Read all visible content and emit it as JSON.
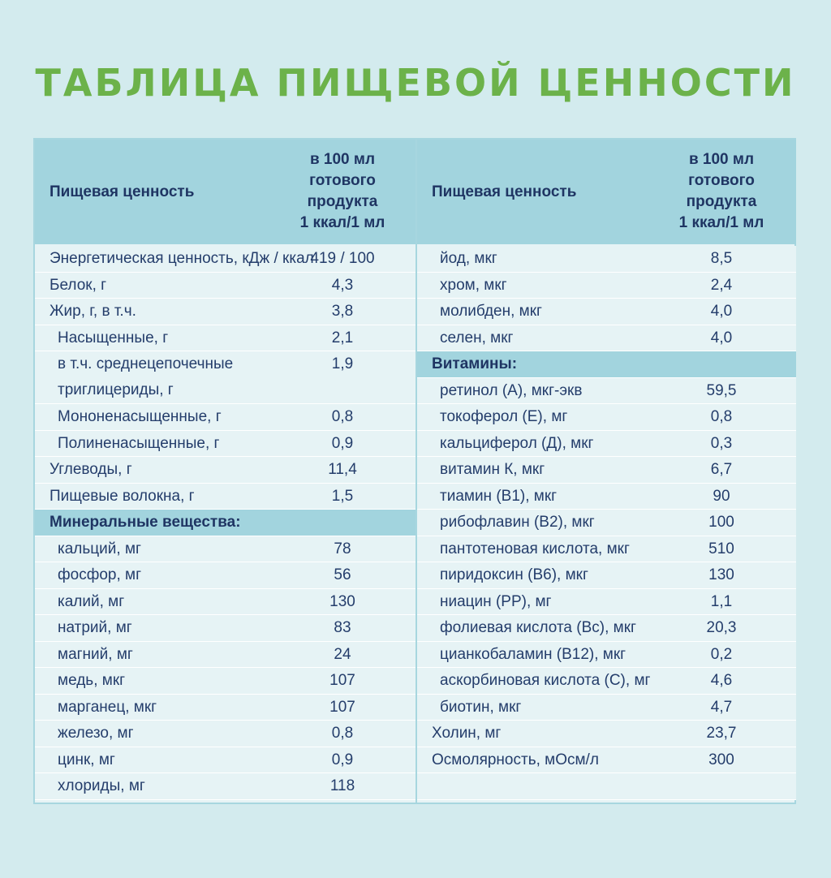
{
  "title": "ТАБЛИЦА ПИЩЕВОЙ ЦЕННОСТИ",
  "header": {
    "label": "Пищевая ценность",
    "unit": "в 100 мл\nготового\nпродукта\n1 ккал/1 мл"
  },
  "left_rows": [
    {
      "label": "Энергетическая ценность, кДж / ккал",
      "value": "419 / 100",
      "type": "normal"
    },
    {
      "label": "Белок, г",
      "value": "4,3",
      "type": "normal"
    },
    {
      "label": "Жир, г, в т.ч.",
      "value": "3,8",
      "type": "normal"
    },
    {
      "label": "Насыщенные, г",
      "value": "2,1",
      "type": "indent"
    },
    {
      "label": "в т.ч. среднецепочечные триглицериды, г",
      "value": "1,9",
      "type": "indent-tall"
    },
    {
      "label": "Мононенасыщенные, г",
      "value": "0,8",
      "type": "indent"
    },
    {
      "label": "Полиненасыщенные, г",
      "value": "0,9",
      "type": "indent"
    },
    {
      "label": "Углеводы, г",
      "value": "11,4",
      "type": "normal"
    },
    {
      "label": "Пищевые волокна, г",
      "value": "1,5",
      "type": "normal"
    },
    {
      "label": "Минеральные вещества:",
      "value": "",
      "type": "section"
    },
    {
      "label": "кальций, мг",
      "value": "78",
      "type": "indent"
    },
    {
      "label": "фосфор, мг",
      "value": "56",
      "type": "indent"
    },
    {
      "label": "калий, мг",
      "value": "130",
      "type": "indent"
    },
    {
      "label": "натрий, мг",
      "value": "83",
      "type": "indent"
    },
    {
      "label": "магний, мг",
      "value": "24",
      "type": "indent"
    },
    {
      "label": "медь, мкг",
      "value": "107",
      "type": "indent"
    },
    {
      "label": "марганец, мкг",
      "value": "107",
      "type": "indent"
    },
    {
      "label": "железо, мг",
      "value": "0,8",
      "type": "indent"
    },
    {
      "label": "цинк, мг",
      "value": "0,9",
      "type": "indent"
    },
    {
      "label": "хлориды, мг",
      "value": "118",
      "type": "indent"
    }
  ],
  "right_rows": [
    {
      "label": "йод, мкг",
      "value": "8,5",
      "type": "indent"
    },
    {
      "label": "хром, мкг",
      "value": "2,4",
      "type": "indent"
    },
    {
      "label": "молибден, мкг",
      "value": "4,0",
      "type": "indent"
    },
    {
      "label": "селен, мкг",
      "value": "4,0",
      "type": "indent"
    },
    {
      "label": "Витамины:",
      "value": "",
      "type": "section"
    },
    {
      "label": "ретинол (А), мкг-экв",
      "value": "59,5",
      "type": "indent"
    },
    {
      "label": "токоферол (Е), мг",
      "value": "0,8",
      "type": "indent"
    },
    {
      "label": "кальциферол (Д), мкг",
      "value": "0,3",
      "type": "indent"
    },
    {
      "label": "витамин К, мкг",
      "value": "6,7",
      "type": "indent"
    },
    {
      "label": "тиамин (В1), мкг",
      "value": "90",
      "type": "indent"
    },
    {
      "label": "рибофлавин (В2), мкг",
      "value": "100",
      "type": "indent"
    },
    {
      "label": "пантотеновая кислота, мкг",
      "value": "510",
      "type": "indent"
    },
    {
      "label": "пиридоксин (В6), мкг",
      "value": "130",
      "type": "indent"
    },
    {
      "label": "ниацин (РР), мг",
      "value": "1,1",
      "type": "indent"
    },
    {
      "label": "фолиевая кислота (Вс), мкг",
      "value": "20,3",
      "type": "indent"
    },
    {
      "label": "цианкобаламин (В12), мкг",
      "value": "0,2",
      "type": "indent"
    },
    {
      "label": "аскорбиновая кислота (С), мг",
      "value": "4,6",
      "type": "indent"
    },
    {
      "label": "биотин, мкг",
      "value": "4,7",
      "type": "indent"
    },
    {
      "label": "Холин, мг",
      "value": "23,7",
      "type": "normal"
    },
    {
      "label": "Осмолярность, мОсм/л",
      "value": "300",
      "type": "normal"
    },
    {
      "label": "",
      "value": "",
      "type": "normal"
    }
  ]
}
